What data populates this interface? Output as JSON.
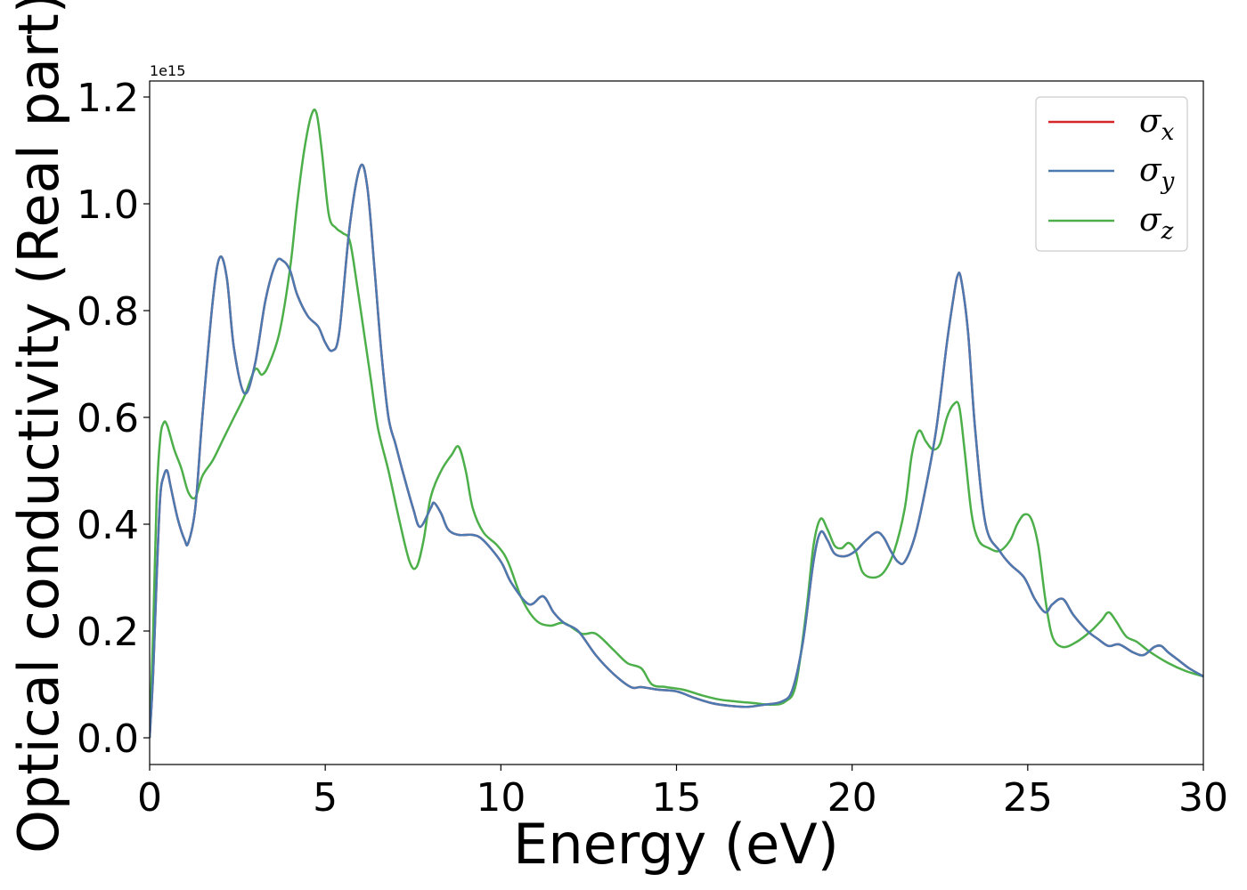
{
  "chart_data": {
    "type": "line",
    "xlabel": "Energy (eV)",
    "ylabel": "Optical conductivity (Real part)",
    "y_offset_label": "1e15",
    "y_scale_factor": 1000000000000000.0,
    "xlim": [
      0,
      30
    ],
    "ylim": [
      -0.05,
      1.23
    ],
    "x_ticks": [
      "0",
      "5",
      "10",
      "15",
      "20",
      "25",
      "30"
    ],
    "y_ticks": [
      "0.0",
      "0.2",
      "0.4",
      "0.6",
      "0.8",
      "1.0",
      "1.2"
    ],
    "grid": false,
    "legend_position": "upper-right",
    "series": [
      {
        "name": "σx",
        "symbol": "σ",
        "subscript": "x",
        "color": "#d62728",
        "x": [
          0,
          0.1,
          0.2,
          0.3,
          0.4,
          0.5,
          0.6,
          0.8,
          1.0,
          1.1,
          1.3,
          1.5,
          1.8,
          2.0,
          2.2,
          2.4,
          2.7,
          3.0,
          3.3,
          3.6,
          3.8,
          4.0,
          4.2,
          4.5,
          4.8,
          5.0,
          5.2,
          5.4,
          5.7,
          6.0,
          6.2,
          6.4,
          6.6,
          6.8,
          7.0,
          7.2,
          7.5,
          7.7,
          8.0,
          8.1,
          8.3,
          8.5,
          8.8,
          9.2,
          9.5,
          10.0,
          10.3,
          10.8,
          11.2,
          11.5,
          11.8,
          12.2,
          12.7,
          13.2,
          13.7,
          14.0,
          14.5,
          15.0,
          15.5,
          16.0,
          16.5,
          17.0,
          17.5,
          18.0,
          18.3,
          18.6,
          18.9,
          19.1,
          19.3,
          19.5,
          19.8,
          20.1,
          20.4,
          20.7,
          20.9,
          21.1,
          21.3,
          21.5,
          21.8,
          22.1,
          22.4,
          22.7,
          22.9,
          23.0,
          23.1,
          23.3,
          23.5,
          23.8,
          24.2,
          24.5,
          24.9,
          25.2,
          25.5,
          25.7,
          26.0,
          26.3,
          26.7,
          27.0,
          27.3,
          27.6,
          28.0,
          28.3,
          28.6,
          28.8,
          29.0,
          29.3,
          29.6,
          30.0
        ],
        "y": [
          0.0,
          0.12,
          0.3,
          0.45,
          0.49,
          0.5,
          0.47,
          0.41,
          0.37,
          0.365,
          0.43,
          0.6,
          0.82,
          0.9,
          0.86,
          0.73,
          0.645,
          0.7,
          0.82,
          0.89,
          0.893,
          0.875,
          0.83,
          0.79,
          0.77,
          0.74,
          0.725,
          0.76,
          0.96,
          1.07,
          1.03,
          0.88,
          0.72,
          0.6,
          0.55,
          0.5,
          0.43,
          0.395,
          0.43,
          0.44,
          0.42,
          0.39,
          0.38,
          0.38,
          0.37,
          0.33,
          0.29,
          0.25,
          0.265,
          0.235,
          0.215,
          0.2,
          0.155,
          0.12,
          0.095,
          0.095,
          0.09,
          0.087,
          0.075,
          0.065,
          0.06,
          0.058,
          0.062,
          0.068,
          0.09,
          0.18,
          0.33,
          0.385,
          0.37,
          0.345,
          0.34,
          0.35,
          0.37,
          0.385,
          0.375,
          0.35,
          0.33,
          0.33,
          0.38,
          0.47,
          0.58,
          0.74,
          0.83,
          0.865,
          0.86,
          0.76,
          0.58,
          0.4,
          0.35,
          0.325,
          0.3,
          0.26,
          0.235,
          0.25,
          0.26,
          0.23,
          0.2,
          0.185,
          0.172,
          0.175,
          0.16,
          0.155,
          0.17,
          0.172,
          0.16,
          0.145,
          0.13,
          0.115
        ]
      },
      {
        "name": "σy",
        "symbol": "σ",
        "subscript": "y",
        "color": "#4c79b0",
        "x": [
          0,
          0.1,
          0.2,
          0.3,
          0.4,
          0.5,
          0.6,
          0.8,
          1.0,
          1.1,
          1.3,
          1.5,
          1.8,
          2.0,
          2.2,
          2.4,
          2.7,
          3.0,
          3.3,
          3.6,
          3.8,
          4.0,
          4.2,
          4.5,
          4.8,
          5.0,
          5.2,
          5.4,
          5.7,
          6.0,
          6.2,
          6.4,
          6.6,
          6.8,
          7.0,
          7.2,
          7.5,
          7.7,
          8.0,
          8.1,
          8.3,
          8.5,
          8.8,
          9.2,
          9.5,
          10.0,
          10.3,
          10.8,
          11.2,
          11.5,
          11.8,
          12.2,
          12.7,
          13.2,
          13.7,
          14.0,
          14.5,
          15.0,
          15.5,
          16.0,
          16.5,
          17.0,
          17.5,
          18.0,
          18.3,
          18.6,
          18.9,
          19.1,
          19.3,
          19.5,
          19.8,
          20.1,
          20.4,
          20.7,
          20.9,
          21.1,
          21.3,
          21.5,
          21.8,
          22.1,
          22.4,
          22.7,
          22.9,
          23.0,
          23.1,
          23.3,
          23.5,
          23.8,
          24.2,
          24.5,
          24.9,
          25.2,
          25.5,
          25.7,
          26.0,
          26.3,
          26.7,
          27.0,
          27.3,
          27.6,
          28.0,
          28.3,
          28.6,
          28.8,
          29.0,
          29.3,
          29.6,
          30.0
        ],
        "y": [
          0.0,
          0.12,
          0.3,
          0.45,
          0.49,
          0.5,
          0.47,
          0.41,
          0.37,
          0.365,
          0.43,
          0.6,
          0.82,
          0.9,
          0.86,
          0.73,
          0.645,
          0.7,
          0.82,
          0.89,
          0.893,
          0.875,
          0.83,
          0.79,
          0.77,
          0.74,
          0.725,
          0.76,
          0.96,
          1.07,
          1.03,
          0.88,
          0.72,
          0.6,
          0.55,
          0.5,
          0.43,
          0.395,
          0.43,
          0.44,
          0.42,
          0.39,
          0.38,
          0.38,
          0.37,
          0.33,
          0.29,
          0.25,
          0.265,
          0.235,
          0.215,
          0.2,
          0.155,
          0.12,
          0.095,
          0.095,
          0.09,
          0.087,
          0.075,
          0.065,
          0.06,
          0.058,
          0.062,
          0.068,
          0.09,
          0.18,
          0.33,
          0.385,
          0.37,
          0.345,
          0.34,
          0.35,
          0.37,
          0.385,
          0.375,
          0.35,
          0.33,
          0.33,
          0.38,
          0.47,
          0.58,
          0.74,
          0.83,
          0.865,
          0.86,
          0.76,
          0.58,
          0.4,
          0.35,
          0.325,
          0.3,
          0.26,
          0.235,
          0.25,
          0.26,
          0.23,
          0.2,
          0.185,
          0.172,
          0.175,
          0.16,
          0.155,
          0.17,
          0.172,
          0.16,
          0.145,
          0.13,
          0.115
        ]
      },
      {
        "name": "σz",
        "symbol": "σ",
        "subscript": "z",
        "color": "#4daf4a",
        "x": [
          0,
          0.1,
          0.2,
          0.3,
          0.4,
          0.5,
          0.7,
          0.9,
          1.1,
          1.3,
          1.5,
          1.8,
          2.1,
          2.4,
          2.7,
          3.0,
          3.2,
          3.4,
          3.7,
          4.0,
          4.2,
          4.4,
          4.6,
          4.75,
          4.9,
          5.1,
          5.3,
          5.5,
          5.7,
          5.9,
          6.1,
          6.3,
          6.5,
          6.8,
          7.1,
          7.4,
          7.6,
          7.8,
          8.0,
          8.3,
          8.6,
          8.8,
          9.0,
          9.2,
          9.5,
          9.9,
          10.2,
          10.6,
          11.0,
          11.4,
          11.8,
          12.3,
          12.7,
          13.2,
          13.6,
          14.0,
          14.3,
          14.7,
          15.2,
          15.7,
          16.2,
          16.7,
          17.2,
          17.7,
          18.1,
          18.4,
          18.7,
          18.9,
          19.1,
          19.3,
          19.5,
          19.7,
          19.9,
          20.1,
          20.3,
          20.6,
          20.9,
          21.2,
          21.5,
          21.7,
          21.9,
          22.1,
          22.3,
          22.5,
          22.7,
          22.9,
          23.05,
          23.2,
          23.4,
          23.6,
          23.9,
          24.2,
          24.5,
          24.7,
          24.9,
          25.1,
          25.3,
          25.5,
          25.7,
          26.0,
          26.4,
          26.8,
          27.1,
          27.3,
          27.5,
          27.8,
          28.1,
          28.5,
          29.0,
          29.5,
          30.0
        ],
        "y": [
          0.0,
          0.2,
          0.45,
          0.56,
          0.59,
          0.585,
          0.54,
          0.505,
          0.46,
          0.45,
          0.49,
          0.52,
          0.56,
          0.6,
          0.64,
          0.69,
          0.68,
          0.7,
          0.76,
          0.88,
          1.0,
          1.1,
          1.165,
          1.17,
          1.1,
          0.98,
          0.955,
          0.945,
          0.93,
          0.85,
          0.76,
          0.67,
          0.58,
          0.5,
          0.41,
          0.33,
          0.32,
          0.37,
          0.45,
          0.5,
          0.53,
          0.545,
          0.5,
          0.43,
          0.385,
          0.36,
          0.33,
          0.26,
          0.22,
          0.21,
          0.215,
          0.195,
          0.195,
          0.165,
          0.14,
          0.13,
          0.1,
          0.095,
          0.09,
          0.08,
          0.072,
          0.068,
          0.065,
          0.062,
          0.068,
          0.1,
          0.24,
          0.36,
          0.41,
          0.39,
          0.36,
          0.355,
          0.365,
          0.35,
          0.31,
          0.3,
          0.31,
          0.35,
          0.43,
          0.53,
          0.575,
          0.555,
          0.54,
          0.55,
          0.6,
          0.625,
          0.62,
          0.54,
          0.42,
          0.37,
          0.355,
          0.35,
          0.37,
          0.4,
          0.418,
          0.41,
          0.36,
          0.26,
          0.19,
          0.17,
          0.18,
          0.2,
          0.22,
          0.235,
          0.22,
          0.19,
          0.18,
          0.16,
          0.14,
          0.125,
          0.115
        ]
      }
    ]
  }
}
